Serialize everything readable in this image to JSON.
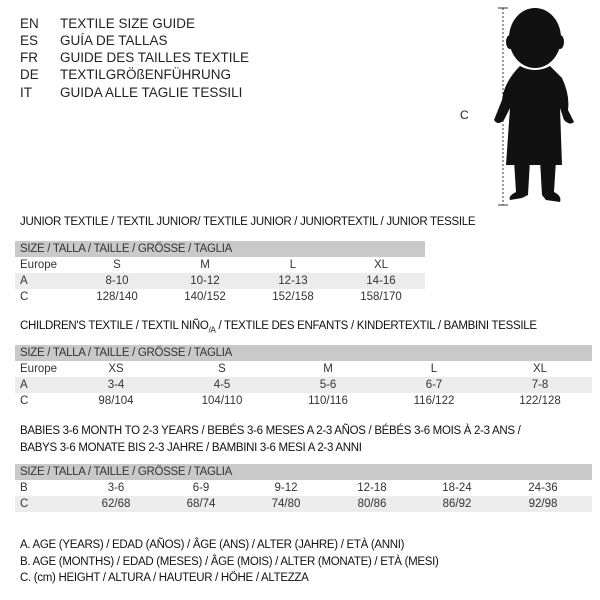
{
  "header": [
    {
      "code": "EN",
      "title": "TEXTILE SIZE GUIDE"
    },
    {
      "code": "ES",
      "title": "GUÍA DE TALLAS"
    },
    {
      "code": "FR",
      "title": "GUIDE DES TAILLES TEXTILE"
    },
    {
      "code": "DE",
      "title": "TEXTILGRÖßENFÜHRUNG"
    },
    {
      "code": "IT",
      "title": "GUIDA ALLE TAGLIE TESSILI"
    }
  ],
  "figure": {
    "measure_label": "C",
    "icon": "child-silhouette-icon"
  },
  "junior": {
    "title": "JUNIOR TEXTILE / TEXTIL JUNIOR/ TEXTILE JUNIOR / JUNIORTEXTIL / JUNIOR TESSILE",
    "header": "SIZE / TALLA / TAILLE / GRÖSSE / TAGLIA",
    "rows": [
      {
        "label": "Europe",
        "values": [
          "S",
          "M",
          "L",
          "XL"
        ]
      },
      {
        "label": "A",
        "values": [
          "8-10",
          "10-12",
          "12-13",
          "14-16"
        ]
      },
      {
        "label": "C",
        "values": [
          "128/140",
          "140/152",
          "152/158",
          "158/170"
        ]
      }
    ]
  },
  "children": {
    "title": "CHILDREN'S TEXTILE / TEXTIL NIÑO",
    "title_sub": "/A",
    "title_rest": " / TEXTILE DES ENFANTS / KINDERTEXTIL / BAMBINI TESSILE",
    "header": "SIZE / TALLA / TAILLE / GRÖSSE / TAGLIA",
    "rows": [
      {
        "label": "Europe",
        "values": [
          "XS",
          "S",
          "M",
          "L",
          "XL"
        ]
      },
      {
        "label": "A",
        "values": [
          "3-4",
          "4-5",
          "5-6",
          "6-7",
          "7-8"
        ]
      },
      {
        "label": "C",
        "values": [
          "98/104",
          "104/110",
          "110/116",
          "116/122",
          "122/128"
        ]
      }
    ]
  },
  "babies": {
    "title_line1": "BABIES 3-6 MONTH TO 2-3 YEARS / BEBÉS 3-6 MESES A 2-3 AÑOS / BÉBÉS 3-6 MOIS À 2-3 ANS /",
    "title_line2": "BABYS 3-6 MONATE BIS 2-3 JAHRE / BAMBINI 3-6 MESI A 2-3 ANNI",
    "header": "SIZE / TALLA / TAILLE / GRÖSSE / TAGLIA",
    "rows": [
      {
        "label": "B",
        "values": [
          "3-6",
          "6-9",
          "9-12",
          "12-18",
          "18-24",
          "24-36"
        ]
      },
      {
        "label": "C",
        "values": [
          "62/68",
          "68/74",
          "74/80",
          "80/86",
          "86/92",
          "92/98"
        ]
      }
    ]
  },
  "legend": [
    "A. AGE (YEARS) / EDAD (AÑOS) / ÂGE (ANS) / ALTER (JAHRE) / ETÀ (ANNI)",
    "B. AGE (MONTHS) / EDAD (MESES) / ÂGE (MOIS) / ALTER (MONATE) / ETÀ (MESI)",
    "C. (cm) HEIGHT / ALTURA / HAUTEUR / HÖHE / ALTEZZA"
  ]
}
